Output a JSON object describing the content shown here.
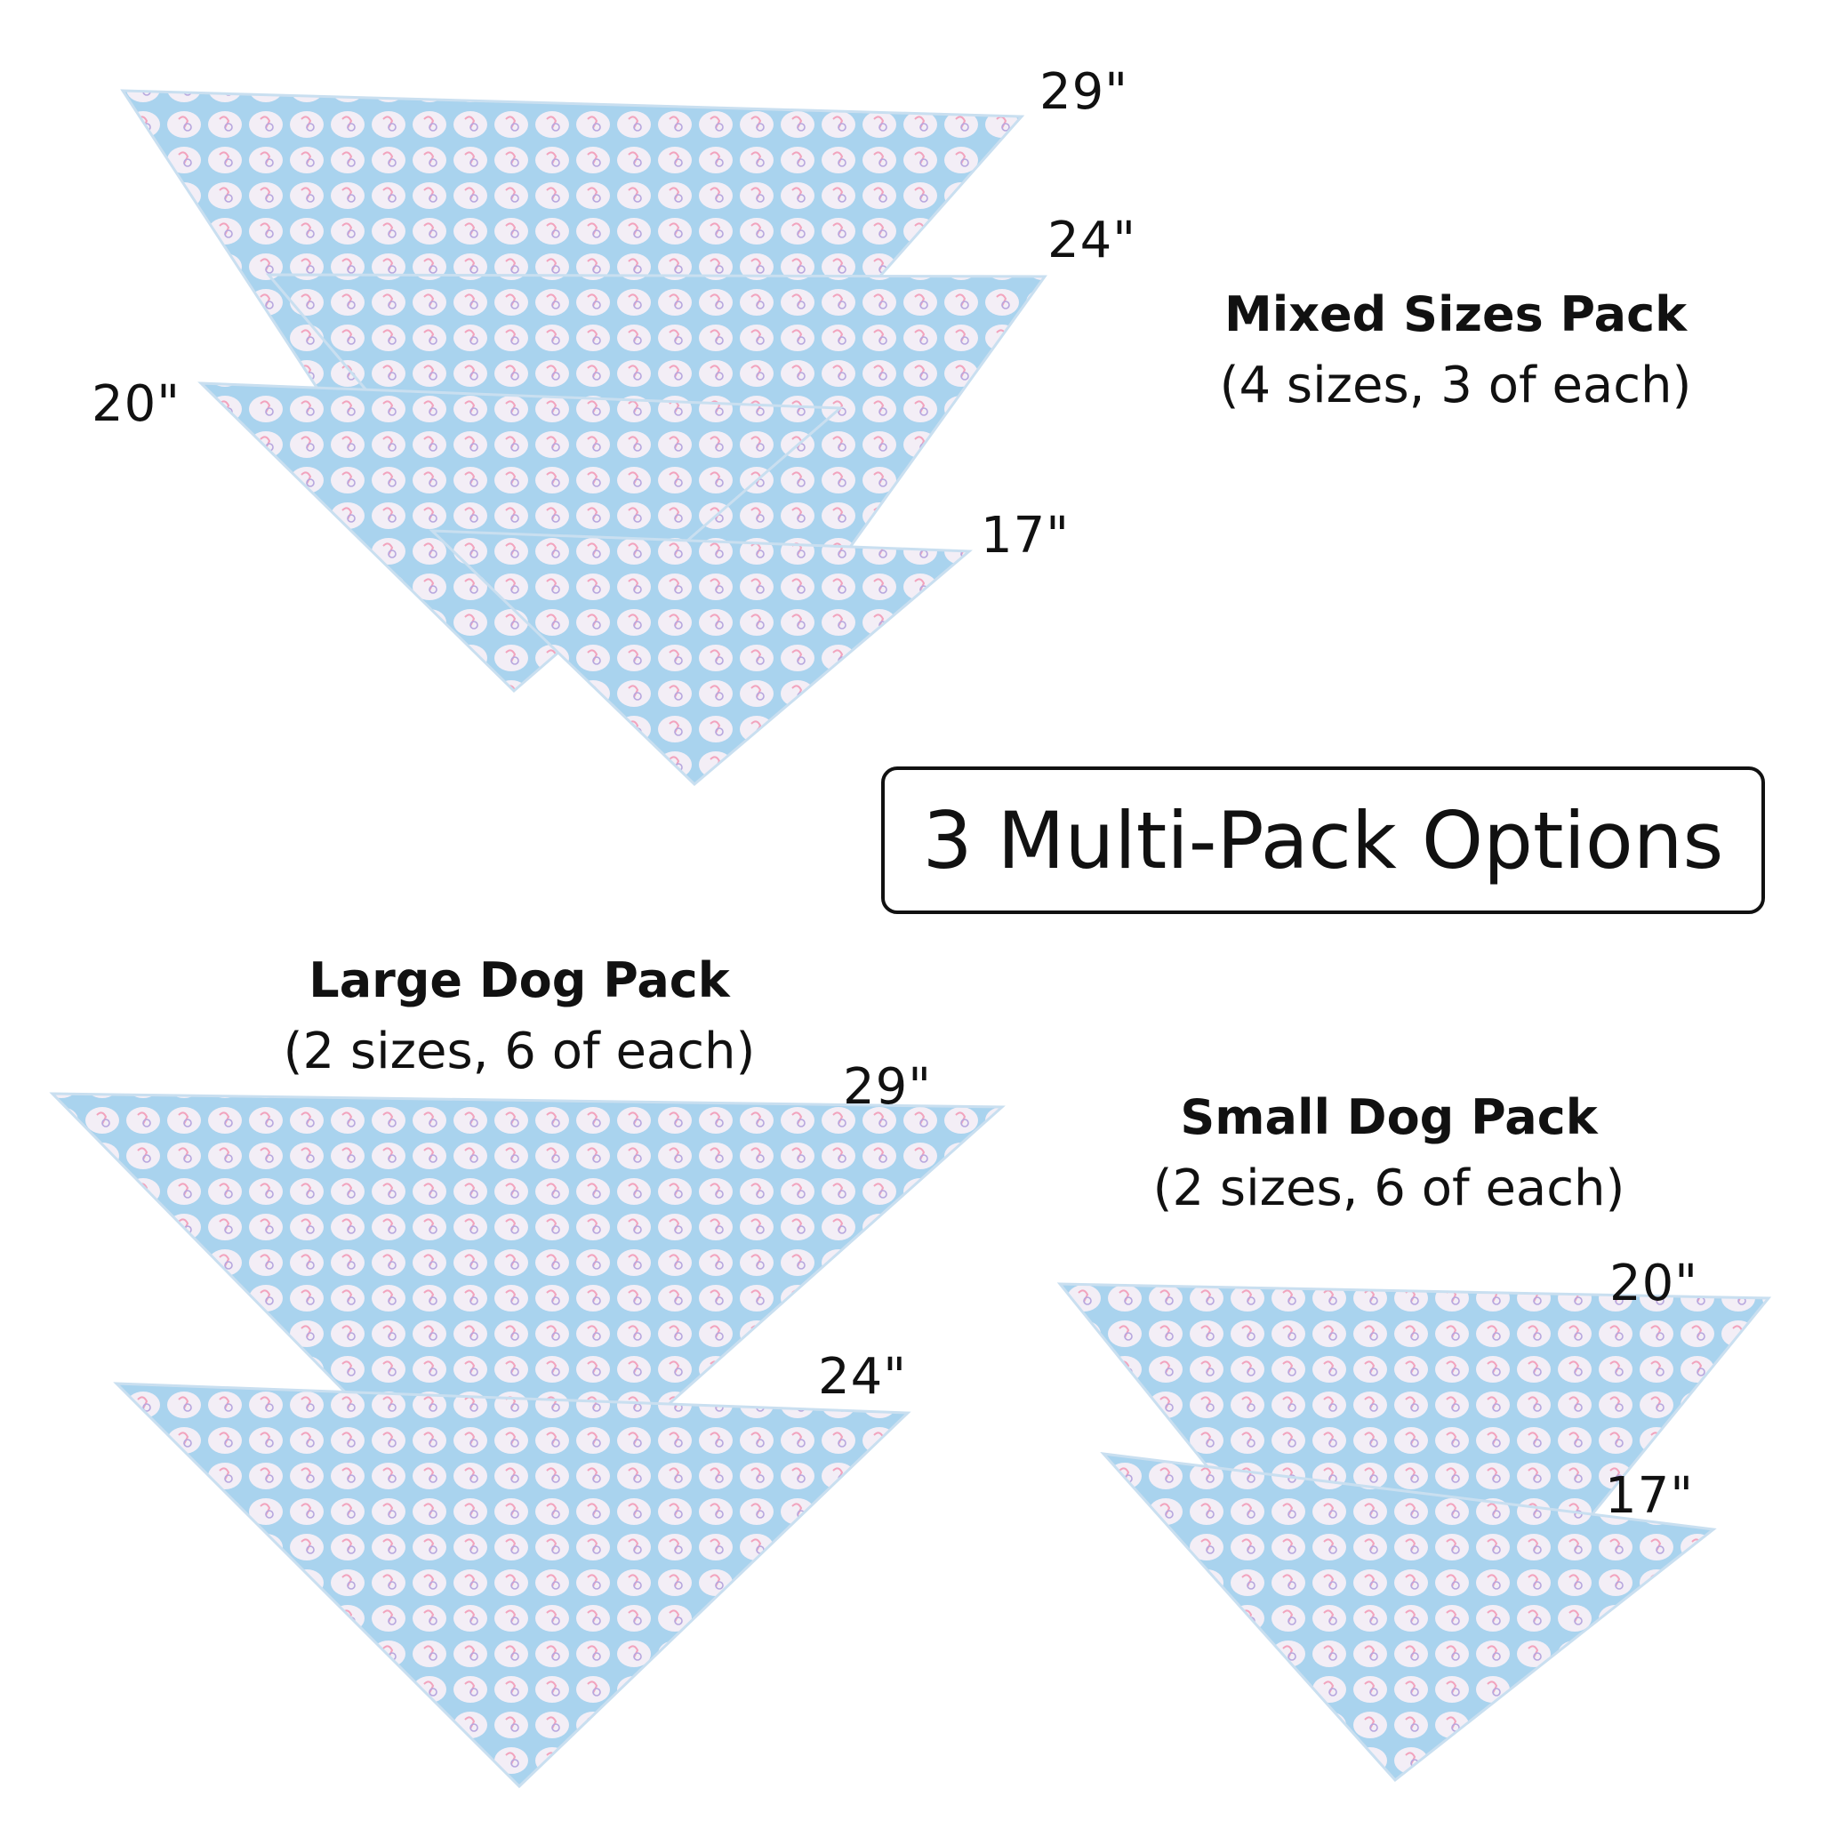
{
  "title": "3 Multi-Pack Options",
  "colors": {
    "fabric_blue": "#a9d3ee",
    "fabric_white": "#f3eef6",
    "motif_pink": "#f2a3bd",
    "motif_purple": "#b7a6de"
  },
  "packs": {
    "mixed": {
      "name": "Mixed Sizes Pack",
      "detail": "(4 sizes, 3 of each)",
      "sizes": [
        "29\"",
        "24\"",
        "20\"",
        "17\""
      ]
    },
    "large": {
      "name": "Large Dog Pack",
      "detail": "(2 sizes, 6 of each)",
      "sizes": [
        "29\"",
        "24\""
      ]
    },
    "small": {
      "name": "Small Dog Pack",
      "detail": "(2 sizes, 6 of each)",
      "sizes": [
        "20\"",
        "17\""
      ]
    }
  }
}
